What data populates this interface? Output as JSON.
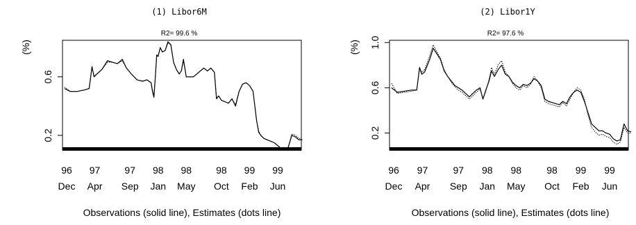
{
  "chart_data": [
    {
      "type": "line",
      "title": "(1) Libor6M",
      "subtitle": "R2= 99.6 %",
      "ylabel": "(%)",
      "xlabel": "Observations (solid line), Estimates (dots line)",
      "ylim": [
        0.1,
        0.85
      ],
      "yticks": [
        "0.2",
        "0.6"
      ],
      "xticks": [
        {
          "year": "96",
          "month": "Dec",
          "t": 0.0
        },
        {
          "year": "97",
          "month": "Apr",
          "t": 4.0
        },
        {
          "year": "97",
          "month": "Sep",
          "t": 9.0
        },
        {
          "year": "98",
          "month": "Jan",
          "t": 13.0
        },
        {
          "year": "98",
          "month": "May",
          "t": 17.0
        },
        {
          "year": "98",
          "month": "Oct",
          "t": 22.0
        },
        {
          "year": "99",
          "month": "Feb",
          "t": 26.0
        },
        {
          "year": "99",
          "month": "Jun",
          "t": 30.0
        }
      ],
      "series": [
        {
          "name": "Observations",
          "style": "solid",
          "x": [
            -0.3,
            0.5,
            1.5,
            2.5,
            3.2,
            3.6,
            3.9,
            4.3,
            5.0,
            5.8,
            6.5,
            7.2,
            7.9,
            8.5,
            9.2,
            10.0,
            10.8,
            11.4,
            12.0,
            12.2,
            12.4,
            12.6,
            12.8,
            13.0,
            13.3,
            13.6,
            14.0,
            14.4,
            14.8,
            15.2,
            15.6,
            16.0,
            16.3,
            16.6,
            17.0,
            17.5,
            18.0,
            18.5,
            19.0,
            19.5,
            20.0,
            20.5,
            21.0,
            21.3,
            21.6,
            22.0,
            22.5,
            23.0,
            23.5,
            24.0,
            24.5,
            25.0,
            25.5,
            26.0,
            26.5,
            27.0,
            27.3,
            27.6,
            28.0,
            28.5,
            29.0,
            29.5,
            30.0,
            30.5,
            31.0,
            31.5,
            32.0,
            32.5,
            33.0,
            33.5
          ],
          "y": [
            0.52,
            0.5,
            0.5,
            0.51,
            0.52,
            0.67,
            0.6,
            0.62,
            0.65,
            0.71,
            0.7,
            0.69,
            0.72,
            0.66,
            0.62,
            0.58,
            0.57,
            0.58,
            0.56,
            0.5,
            0.46,
            0.6,
            0.75,
            0.74,
            0.8,
            0.77,
            0.78,
            0.84,
            0.82,
            0.7,
            0.65,
            0.62,
            0.64,
            0.72,
            0.6,
            0.6,
            0.6,
            0.62,
            0.64,
            0.66,
            0.64,
            0.66,
            0.63,
            0.45,
            0.47,
            0.44,
            0.43,
            0.42,
            0.45,
            0.4,
            0.5,
            0.55,
            0.56,
            0.54,
            0.5,
            0.3,
            0.22,
            0.2,
            0.18,
            0.17,
            0.16,
            0.15,
            0.13,
            0.11,
            0.1,
            0.12,
            0.2,
            0.19,
            0.17,
            0.17
          ]
        },
        {
          "name": "Estimates",
          "style": "dotted",
          "x": [
            -0.3,
            0.5,
            1.5,
            2.5,
            3.2,
            3.6,
            3.9,
            4.3,
            5.0,
            5.8,
            6.5,
            7.2,
            7.9,
            8.5,
            9.2,
            10.0,
            10.8,
            11.4,
            12.0,
            12.2,
            12.4,
            12.6,
            12.8,
            13.0,
            13.3,
            13.6,
            14.0,
            14.4,
            14.8,
            15.2,
            15.6,
            16.0,
            16.3,
            16.6,
            17.0,
            17.5,
            18.0,
            18.5,
            19.0,
            19.5,
            20.0,
            20.5,
            21.0,
            21.3,
            21.6,
            22.0,
            22.5,
            23.0,
            23.5,
            24.0,
            24.5,
            25.0,
            25.5,
            26.0,
            26.5,
            27.0,
            27.3,
            27.6,
            28.0,
            28.5,
            29.0,
            29.5,
            30.0,
            30.5,
            31.0,
            31.5,
            32.0,
            32.5,
            33.0,
            33.5
          ],
          "y": [
            0.53,
            0.5,
            0.5,
            0.51,
            0.52,
            0.66,
            0.61,
            0.62,
            0.65,
            0.7,
            0.7,
            0.69,
            0.71,
            0.66,
            0.62,
            0.58,
            0.57,
            0.58,
            0.56,
            0.51,
            0.47,
            0.6,
            0.74,
            0.74,
            0.8,
            0.77,
            0.78,
            0.83,
            0.82,
            0.7,
            0.65,
            0.62,
            0.64,
            0.71,
            0.6,
            0.6,
            0.6,
            0.62,
            0.64,
            0.66,
            0.64,
            0.66,
            0.63,
            0.46,
            0.47,
            0.44,
            0.43,
            0.42,
            0.45,
            0.41,
            0.5,
            0.55,
            0.56,
            0.54,
            0.5,
            0.3,
            0.23,
            0.2,
            0.18,
            0.17,
            0.16,
            0.15,
            0.13,
            0.11,
            0.11,
            0.12,
            0.21,
            0.2,
            0.18,
            0.17
          ]
        }
      ]
    },
    {
      "type": "line",
      "title": "(2) Libor1Y",
      "subtitle": "R2= 97.6 %",
      "ylabel": "(%)",
      "xlabel": "Observations (solid line), Estimates (dots line)",
      "ylim": [
        0.05,
        1.02
      ],
      "yticks": [
        "0.2",
        "0.6",
        "1.0"
      ],
      "xticks": [
        {
          "year": "96",
          "month": "Dec",
          "t": 0.0
        },
        {
          "year": "97",
          "month": "Apr",
          "t": 4.0
        },
        {
          "year": "97",
          "month": "Sep",
          "t": 9.0
        },
        {
          "year": "98",
          "month": "Jan",
          "t": 13.0
        },
        {
          "year": "98",
          "month": "May",
          "t": 17.0
        },
        {
          "year": "98",
          "month": "Oct",
          "t": 22.0
        },
        {
          "year": "99",
          "month": "Feb",
          "t": 26.0
        },
        {
          "year": "99",
          "month": "Jun",
          "t": 30.0
        }
      ],
      "series": [
        {
          "name": "Observations",
          "style": "solid",
          "x": [
            -0.3,
            0.5,
            1.5,
            2.5,
            3.2,
            3.6,
            3.9,
            4.3,
            5.0,
            5.5,
            6.0,
            6.5,
            7.0,
            7.5,
            8.0,
            8.5,
            9.0,
            9.5,
            10.0,
            10.5,
            11.0,
            11.5,
            12.0,
            12.4,
            12.8,
            13.2,
            13.6,
            14.0,
            14.5,
            15.0,
            15.5,
            16.0,
            16.5,
            17.0,
            17.5,
            18.0,
            18.5,
            19.0,
            19.5,
            20.0,
            20.5,
            21.0,
            21.5,
            22.0,
            22.5,
            23.0,
            23.5,
            24.0,
            24.5,
            25.0,
            25.5,
            26.0,
            26.5,
            27.0,
            27.5,
            28.0,
            28.5,
            29.0,
            29.5,
            30.0,
            30.5,
            31.0,
            31.5,
            32.0,
            32.5,
            33.0
          ],
          "y": [
            0.6,
            0.56,
            0.57,
            0.58,
            0.58,
            0.78,
            0.72,
            0.74,
            0.85,
            0.95,
            0.9,
            0.85,
            0.75,
            0.7,
            0.66,
            0.62,
            0.6,
            0.58,
            0.55,
            0.52,
            0.55,
            0.58,
            0.6,
            0.5,
            0.58,
            0.65,
            0.75,
            0.7,
            0.76,
            0.8,
            0.72,
            0.7,
            0.65,
            0.62,
            0.6,
            0.63,
            0.62,
            0.64,
            0.68,
            0.66,
            0.62,
            0.5,
            0.48,
            0.47,
            0.46,
            0.45,
            0.48,
            0.46,
            0.52,
            0.56,
            0.58,
            0.56,
            0.48,
            0.38,
            0.28,
            0.25,
            0.22,
            0.22,
            0.2,
            0.19,
            0.15,
            0.13,
            0.14,
            0.28,
            0.22,
            0.21
          ]
        },
        {
          "name": "Estimates",
          "style": "dotted",
          "x": [
            -0.3,
            0.5,
            1.5,
            2.5,
            3.2,
            3.6,
            3.9,
            4.3,
            5.0,
            5.5,
            6.0,
            6.5,
            7.0,
            7.5,
            8.0,
            8.5,
            9.0,
            9.5,
            10.0,
            10.5,
            11.0,
            11.5,
            12.0,
            12.4,
            12.8,
            13.2,
            13.6,
            14.0,
            14.5,
            15.0,
            15.5,
            16.0,
            16.5,
            17.0,
            17.5,
            18.0,
            18.5,
            19.0,
            19.5,
            20.0,
            20.5,
            21.0,
            21.5,
            22.0,
            22.5,
            23.0,
            23.5,
            24.0,
            24.5,
            25.0,
            25.5,
            26.0,
            26.5,
            27.0,
            27.5,
            28.0,
            28.5,
            29.0,
            29.5,
            30.0,
            30.5,
            31.0,
            31.5,
            32.0,
            32.5,
            33.0
          ],
          "y": [
            0.64,
            0.55,
            0.56,
            0.57,
            0.58,
            0.77,
            0.74,
            0.76,
            0.88,
            0.98,
            0.92,
            0.86,
            0.76,
            0.7,
            0.65,
            0.61,
            0.58,
            0.56,
            0.53,
            0.5,
            0.53,
            0.56,
            0.59,
            0.5,
            0.57,
            0.66,
            0.78,
            0.72,
            0.8,
            0.84,
            0.74,
            0.7,
            0.64,
            0.6,
            0.58,
            0.62,
            0.6,
            0.63,
            0.7,
            0.66,
            0.6,
            0.48,
            0.46,
            0.45,
            0.44,
            0.43,
            0.47,
            0.44,
            0.5,
            0.56,
            0.6,
            0.58,
            0.5,
            0.36,
            0.25,
            0.21,
            0.18,
            0.19,
            0.17,
            0.16,
            0.12,
            0.1,
            0.12,
            0.25,
            0.2,
            0.2
          ]
        }
      ]
    }
  ]
}
